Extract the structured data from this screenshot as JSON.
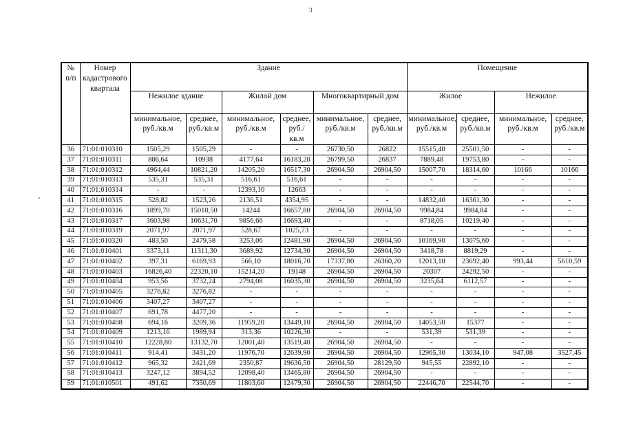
{
  "page": {
    "number": "3"
  },
  "table": {
    "header": {
      "number": "№ п/п",
      "cadastral": "Номер кадастрового квартала",
      "building": "Здание",
      "premises": "Помещение",
      "nonres_building": "Нежилое здание",
      "res_house": "Жилой дом",
      "apartment_house": "Многоквартирный дом",
      "residential": "Жилое",
      "nonresidential": "Нежилое",
      "min_label": "минимальное, руб./кв.м",
      "avg_label": "среднее, руб./кв.м"
    },
    "rows": [
      [
        "36",
        "71:01:010310",
        "1505,29",
        "1505,29",
        "-",
        "-",
        "26730,50",
        "26822",
        "15515,40",
        "25501,50",
        "-",
        "-"
      ],
      [
        "37",
        "71:01:010311",
        "806,64",
        "10938",
        "4177,64",
        "16183,20",
        "26799,50",
        "26837",
        "7889,48",
        "19753,80",
        "-",
        "-"
      ],
      [
        "38",
        "71:01:010312",
        "4964,44",
        "10821,20",
        "14205,20",
        "16517,30",
        "26904,50",
        "26904,50",
        "15007,70",
        "18314,60",
        "10166",
        "10166"
      ],
      [
        "39",
        "71:01:010313",
        "535,31",
        "535,31",
        "516,61",
        "516,61",
        "-",
        "-",
        "-",
        "-",
        "-",
        "-"
      ],
      [
        "40",
        "71:01:010314",
        "-",
        "-",
        "12393,10",
        "12663",
        "-",
        "-",
        "-",
        "-",
        "-",
        "-"
      ],
      [
        "41",
        "71:01:010315",
        "528,82",
        "1523,26",
        "2136,51",
        "4354,95",
        "-",
        "-",
        "14832,40",
        "16361,30",
        "-",
        "-"
      ],
      [
        "42",
        "71:01:010316",
        "1899,70",
        "15010,50",
        "14244",
        "16657,80",
        "26904,50",
        "26904,50",
        "9984,84",
        "9984,84",
        "-",
        "-"
      ],
      [
        "43",
        "71:01:010317",
        "3603,98",
        "10631,70",
        "9856,66",
        "16693,40",
        "-",
        "-",
        "8718,05",
        "10219,40",
        "-",
        "-"
      ],
      [
        "44",
        "71:01:010319",
        "2071,97",
        "2071,97",
        "528,67",
        "1025,73",
        "-",
        "-",
        "-",
        "-",
        "-",
        "-"
      ],
      [
        "45",
        "71:01:010320",
        "483,50",
        "2479,58",
        "3253,06",
        "12481,90",
        "26904,50",
        "26904,50",
        "10169,90",
        "13075,60",
        "-",
        "-"
      ],
      [
        "46",
        "71:01:010401",
        "3373,11",
        "11311,30",
        "3689,92",
        "12734,30",
        "26904,50",
        "26904,50",
        "3418,78",
        "8819,29",
        "-",
        "-"
      ],
      [
        "47",
        "71:01:010402",
        "397,31",
        "6169,93",
        "566,10",
        "18016,70",
        "17337,80",
        "26360,20",
        "12013,10",
        "23692,40",
        "993,44",
        "5610,59"
      ],
      [
        "48",
        "71:01:010403",
        "16826,40",
        "22320,10",
        "15214,20",
        "19148",
        "26904,50",
        "26904,50",
        "20307",
        "24292,50",
        "-",
        "-"
      ],
      [
        "49",
        "71:01:010404",
        "953,56",
        "3732,24",
        "2794,08",
        "16035,30",
        "26904,50",
        "26904,50",
        "3235,64",
        "6112,57",
        "-",
        "-"
      ],
      [
        "50",
        "71:01:010405",
        "3276,82",
        "3276,82",
        "-",
        "-",
        "-",
        "-",
        "-",
        "-",
        "-",
        "-"
      ],
      [
        "51",
        "71:01:010406",
        "3407,27",
        "3407,27",
        "-",
        "-",
        "-",
        "-",
        "-",
        "-",
        "-",
        "-"
      ],
      [
        "52",
        "71:01:010407",
        "691,78",
        "4477,20",
        "-",
        "-",
        "-",
        "-",
        "-",
        "-",
        "-",
        "-"
      ],
      [
        "53",
        "71:01:010408",
        "694,16",
        "3209,36",
        "11959,20",
        "13449,10",
        "26904,50",
        "26904,50",
        "14053,50",
        "15377",
        "-",
        "-"
      ],
      [
        "54",
        "71:01:010409",
        "1213,16",
        "1989,94",
        "313,36",
        "10226,30",
        "-",
        "-",
        "531,39",
        "531,39",
        "-",
        "-"
      ],
      [
        "55",
        "71:01:010410",
        "12228,80",
        "13132,70",
        "12001,40",
        "13519,40",
        "26904,50",
        "26904,50",
        "-",
        "-",
        "-",
        "-"
      ],
      [
        "56",
        "71:01:010411",
        "914,41",
        "3431,20",
        "11976,70",
        "12639,90",
        "26904,50",
        "26904,50",
        "12965,30",
        "13034,10",
        "947,08",
        "3527,45"
      ],
      [
        "57",
        "71:01:010412",
        "965,32",
        "2421,69",
        "2350,87",
        "19636,50",
        "26904,50",
        "28129,50",
        "945,55",
        "22892,10",
        "-",
        "-"
      ],
      [
        "58",
        "71:01:010413",
        "3247,12",
        "3894,52",
        "12098,40",
        "13465,80",
        "26904,50",
        "26904,50",
        "-",
        "-",
        "-",
        "-"
      ],
      [
        "59",
        "71:01:010501",
        "491,62",
        "7350,69",
        "11803,60",
        "12479,30",
        "26904,50",
        "26904,50",
        "22446,70",
        "22544,70",
        "-",
        "-"
      ]
    ]
  }
}
